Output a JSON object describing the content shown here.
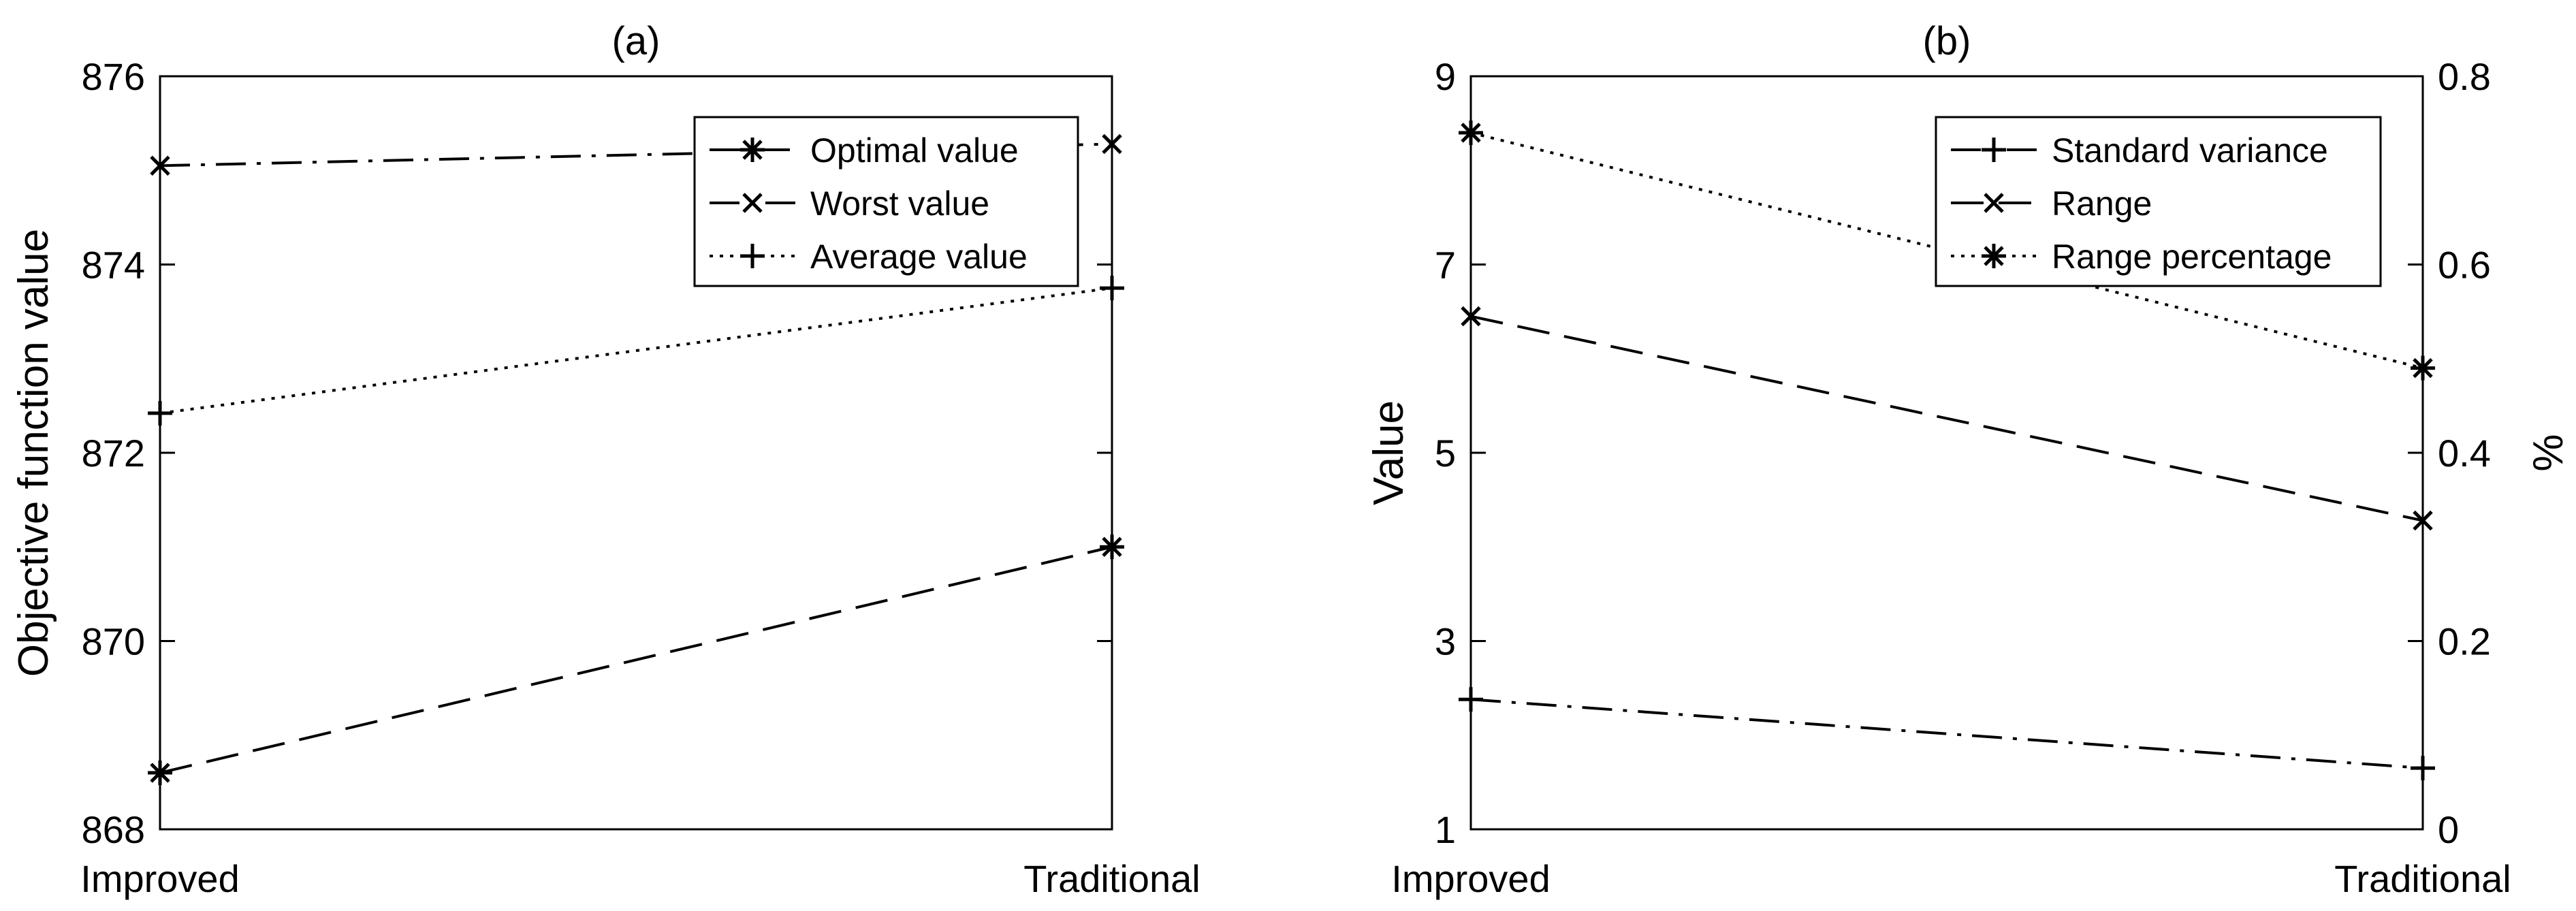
{
  "chart_data": [
    {
      "type": "line",
      "title": "(a)",
      "xlabel": "",
      "ylabel": "Objective function value",
      "categories": [
        "Improved",
        "Traditional"
      ],
      "ylim": [
        868,
        876
      ],
      "yticks": [
        868,
        870,
        872,
        874,
        876
      ],
      "grid": false,
      "legend_position": "top-right",
      "series": [
        {
          "name": "Optimal value",
          "values": [
            868.6,
            871.0
          ],
          "line_style": "dash",
          "marker": "asterisk"
        },
        {
          "name": "Worst value",
          "values": [
            875.05,
            875.28
          ],
          "line_style": "dash-dot",
          "marker": "x"
        },
        {
          "name": "Average value",
          "values": [
            872.42,
            873.75
          ],
          "line_style": "dot",
          "marker": "plus"
        }
      ]
    },
    {
      "type": "line",
      "title": "(b)",
      "xlabel": "",
      "ylabel": "Value",
      "y2label": "%",
      "categories": [
        "Improved",
        "Traditional"
      ],
      "ylim": [
        1,
        9
      ],
      "yticks": [
        1,
        3,
        5,
        7,
        9
      ],
      "y2lim": [
        0,
        0.8
      ],
      "y2ticks": [
        "0",
        "0.2",
        "0.4",
        "0.6",
        "0.8"
      ],
      "grid": false,
      "legend_position": "top-right",
      "series": [
        {
          "name": "Standard variance",
          "axis": "left",
          "values": [
            2.38,
            1.65
          ],
          "line_style": "dash-dot",
          "marker": "plus"
        },
        {
          "name": "Range",
          "axis": "left",
          "values": [
            6.45,
            4.28
          ],
          "line_style": "dash",
          "marker": "x"
        },
        {
          "name": "Range percentage",
          "axis": "right",
          "values": [
            0.74,
            0.49
          ],
          "line_style": "dot",
          "marker": "asterisk"
        }
      ]
    }
  ]
}
